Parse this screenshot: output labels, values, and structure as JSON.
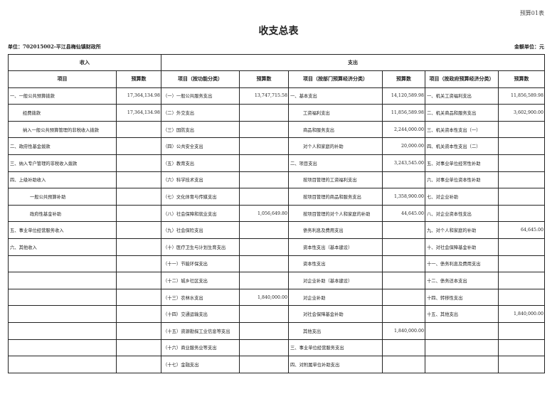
{
  "form_no": "预算01表",
  "title": "收支总表",
  "unit": "单位：702015002-平江县梅仙镇财政所",
  "money_unit": "金额单位：元",
  "header": {
    "income": "收入",
    "expense": "支出",
    "columns": [
      "项目",
      "预算数",
      "项目（按功能分类）",
      "预算数",
      "项目（按部门预算经济分类）",
      "预算数",
      "项目（按政府预算经济分类）",
      "预算数"
    ]
  },
  "rows": [
    [
      "一、一般公共预算拨款",
      "17,364,134.98",
      "（一）一般公共服务支出",
      "13,747,715.58",
      "一、基本支出",
      "14,120,589.98",
      "一、机关工资福利支出",
      "11,856,589.98"
    ],
    [
      "经费拨款",
      "17,364,134.98",
      "（二）外交支出",
      "",
      "工资福利支出",
      "11,856,589.98",
      "二、机关商品和服务支出",
      "3,602,900.00"
    ],
    [
      "纳入一般公共预算管理的非税收入拨款",
      "",
      "（三）国防支出",
      "",
      "商品和服务支出",
      "2,244,000.00",
      "三、机关资本性支出（一）",
      ""
    ],
    [
      "二、政府性基金拨款",
      "",
      "（四）公共安全支出",
      "",
      "对个人和家庭的补助",
      "20,000.00",
      "四、机关资本性支出（二）",
      ""
    ],
    [
      "三、纳入专户管理的非税收入拨款",
      "",
      "（五）教育支出",
      "",
      "二、项目支出",
      "3,243,545.00",
      "五、对事业单位经常性补助",
      ""
    ],
    [
      "四、上级补助收入",
      "",
      "（六）科学技术支出",
      "",
      "按项目管理的工资福利支出",
      "",
      "六、对事业单位资本性补助",
      ""
    ],
    [
      "一般公共预算补助",
      "",
      "（七）文化体育与传媒支出",
      "",
      "按项目管理的商品和服务支出",
      "1,358,900.00",
      "七、对企业补助",
      ""
    ],
    [
      "政府性基金补助",
      "",
      "（八）社会保障和就业支出",
      "1,056,649.80",
      "按项目管理的对个人和家庭的补助",
      "44,645.00",
      "八、对企业资本性支出",
      ""
    ],
    [
      "五、事业单位经营服务收入",
      "",
      "（九）社会保险支出",
      "",
      "债务利息及费用支出",
      "",
      "九、对个人和家庭的补助",
      "64,645.00"
    ],
    [
      "六、其他收入",
      "",
      "（十）医疗卫生与计划生育支出",
      "",
      "资本性支出（基本建设）",
      "",
      "十、对社会保障基金补助",
      ""
    ],
    [
      "",
      "",
      "（十一）节能环保支出",
      "",
      "资本性支出",
      "",
      "十一、债务利息及费用支出",
      ""
    ],
    [
      "",
      "",
      "（十二）城乡社区支出",
      "",
      "对企业补助（基本建设）",
      "",
      "十二、债务还本支出",
      ""
    ],
    [
      "",
      "",
      "（十三）农林水支出",
      "1,840,000.00",
      "对企业补助",
      "",
      "十四、转移性支出",
      ""
    ],
    [
      "",
      "",
      "（十四）交通运输支出",
      "",
      "对社会保障基金补助",
      "",
      "十五、其他支出",
      "1,840,000.00"
    ],
    [
      "",
      "",
      "（十五）资源勘探工业信息等支出",
      "",
      "其他支出",
      "1,840,000.00",
      "",
      ""
    ],
    [
      "",
      "",
      "（十六）商业服务业等支出",
      "",
      "三、事业单位经营服务支出",
      "",
      "",
      ""
    ],
    [
      "",
      "",
      "（十七）金融支出",
      "",
      "四、对附属单位补助支出",
      "",
      "",
      ""
    ]
  ]
}
